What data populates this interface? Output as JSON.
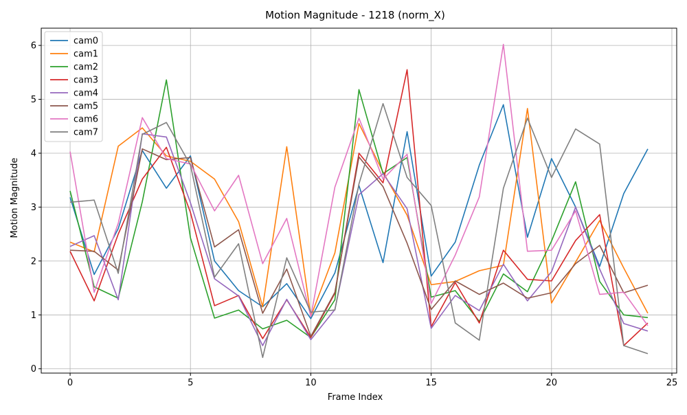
{
  "chart_data": {
    "type": "line",
    "title": "Motion Magnitude - 1218 (norm_X)",
    "xlabel": "Frame Index",
    "ylabel": "Motion Magnitude",
    "xlim": [
      -1.2,
      25.2
    ],
    "ylim": [
      -0.08,
      6.32
    ],
    "xticks": [
      0,
      5,
      10,
      15,
      20,
      25
    ],
    "yticks": [
      0,
      1,
      2,
      3,
      4,
      5,
      6
    ],
    "grid": true,
    "legend_position": "top-left",
    "x": [
      0,
      1,
      2,
      3,
      4,
      5,
      6,
      7,
      8,
      9,
      10,
      11,
      12,
      13,
      14,
      15,
      16,
      17,
      18,
      19,
      20,
      21,
      22,
      23,
      24
    ],
    "series": [
      {
        "name": "cam0",
        "color": "#1f77b4",
        "values": [
          3.18,
          1.75,
          2.6,
          4.05,
          3.35,
          3.95,
          2.0,
          1.45,
          1.15,
          1.58,
          0.93,
          1.78,
          3.4,
          1.97,
          4.4,
          1.72,
          2.35,
          3.78,
          4.9,
          2.44,
          3.9,
          3.0,
          1.9,
          3.25,
          4.08
        ]
      },
      {
        "name": "cam1",
        "color": "#ff7f0e",
        "values": [
          2.35,
          2.17,
          4.13,
          4.47,
          3.95,
          3.85,
          3.52,
          2.73,
          1.15,
          4.12,
          0.97,
          2.15,
          4.55,
          3.65,
          2.85,
          1.56,
          1.62,
          1.82,
          1.92,
          4.83,
          1.22,
          1.98,
          2.75,
          1.87,
          1.03
        ]
      },
      {
        "name": "cam2",
        "color": "#2ca02c",
        "values": [
          3.3,
          1.52,
          1.31,
          3.1,
          5.36,
          2.43,
          0.94,
          1.09,
          0.74,
          0.9,
          0.58,
          1.28,
          5.18,
          3.62,
          3.92,
          1.33,
          1.45,
          0.88,
          1.76,
          1.43,
          2.37,
          3.47,
          1.62,
          1.0,
          0.95
        ]
      },
      {
        "name": "cam3",
        "color": "#d62728",
        "values": [
          2.18,
          1.26,
          2.5,
          3.52,
          4.11,
          2.9,
          1.17,
          1.36,
          0.56,
          1.28,
          0.58,
          1.4,
          4.0,
          3.45,
          5.55,
          0.78,
          1.6,
          0.85,
          2.2,
          1.66,
          1.63,
          2.38,
          2.86,
          0.43,
          0.85
        ]
      },
      {
        "name": "cam4",
        "color": "#9467bd",
        "values": [
          2.27,
          2.47,
          1.28,
          4.36,
          4.3,
          3.08,
          1.67,
          1.35,
          0.43,
          1.29,
          0.54,
          1.1,
          3.23,
          3.62,
          2.97,
          0.75,
          1.36,
          1.08,
          1.94,
          1.26,
          1.8,
          3.0,
          1.85,
          0.84,
          0.7
        ]
      },
      {
        "name": "cam5",
        "color": "#8c564b",
        "values": [
          2.2,
          2.18,
          1.83,
          4.08,
          3.88,
          3.92,
          2.26,
          2.58,
          1.03,
          1.85,
          0.6,
          1.42,
          3.93,
          3.38,
          2.33,
          1.1,
          1.63,
          1.38,
          1.59,
          1.31,
          1.41,
          1.95,
          2.29,
          1.41,
          1.55
        ]
      },
      {
        "name": "cam6",
        "color": "#e377c2",
        "values": [
          4.03,
          1.42,
          2.7,
          4.66,
          3.9,
          3.8,
          2.93,
          3.59,
          1.95,
          2.79,
          0.97,
          3.37,
          4.65,
          3.52,
          3.98,
          1.21,
          2.11,
          3.19,
          6.02,
          2.18,
          2.2,
          2.93,
          1.38,
          1.42,
          0.8
        ]
      },
      {
        "name": "cam7",
        "color": "#7f7f7f",
        "values": [
          3.09,
          3.13,
          1.77,
          4.35,
          4.57,
          3.78,
          1.7,
          2.32,
          0.21,
          2.06,
          1.05,
          1.09,
          3.43,
          4.92,
          3.55,
          3.03,
          0.85,
          0.53,
          3.35,
          4.65,
          3.55,
          4.45,
          4.17,
          0.43,
          0.28
        ]
      }
    ]
  }
}
